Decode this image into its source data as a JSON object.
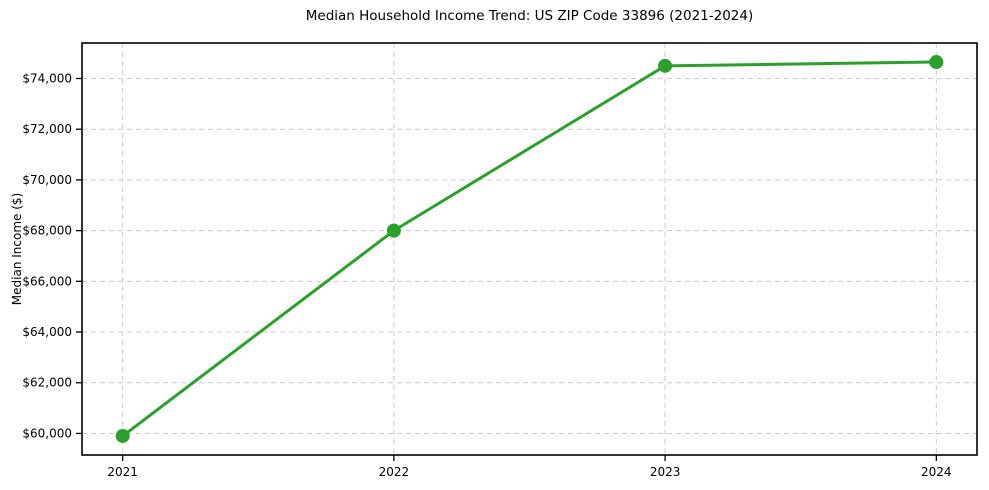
{
  "chart_data": {
    "type": "line",
    "title": "Median Household Income Trend: US ZIP Code 33896 (2021-2024)",
    "xlabel": "",
    "ylabel": "Median Income ($)",
    "x": [
      2021,
      2022,
      2023,
      2024
    ],
    "series": [
      {
        "name": "Median Household Income",
        "values": [
          59900,
          68000,
          74500,
          74650
        ]
      }
    ],
    "xticks": [
      2021,
      2022,
      2023,
      2024
    ],
    "xtick_labels": [
      "2021",
      "2022",
      "2023",
      "2024"
    ],
    "yticks": [
      60000,
      62000,
      64000,
      66000,
      68000,
      70000,
      72000,
      74000
    ],
    "ytick_labels": [
      "$60,000",
      "$62,000",
      "$64,000",
      "$66,000",
      "$68,000",
      "$70,000",
      "$72,000",
      "$74,000"
    ],
    "xlim": [
      2020.85,
      2024.15
    ],
    "ylim": [
      59150,
      75400
    ],
    "grid": true,
    "grid_style": "dashed",
    "grid_color": "#cccccc",
    "line_color": "#2ca02c",
    "marker": "circle",
    "marker_size": 7,
    "line_width": 3,
    "axis_color": "#000000",
    "background": "#ffffff",
    "legend": false
  }
}
